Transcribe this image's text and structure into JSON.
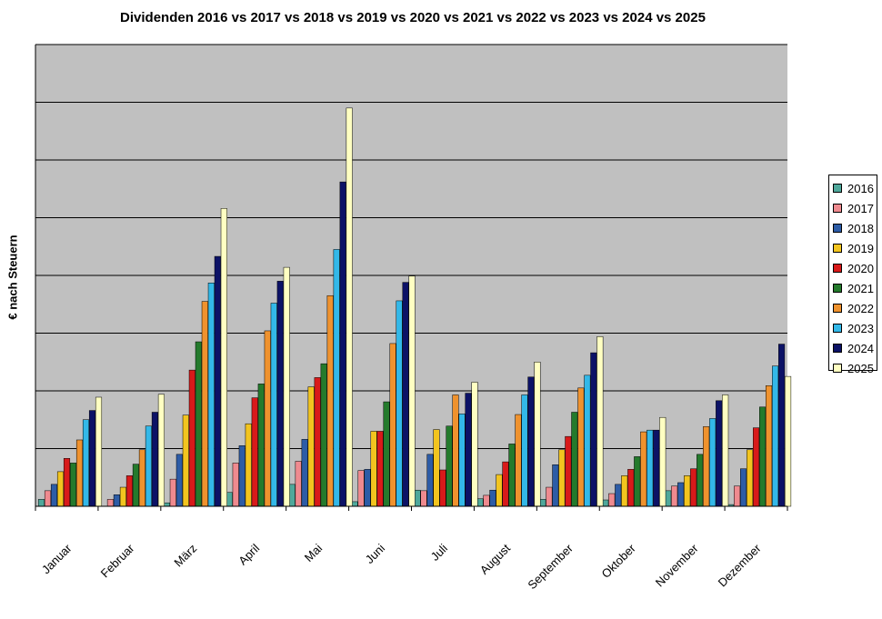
{
  "chart_data": {
    "type": "bar",
    "title": "Dividenden 2016 vs 2017 vs 2018 vs 2019 vs 2020 vs 2021 vs 2022 vs 2023 vs 2024 vs 2025",
    "ylabel": "€ nach Steuern",
    "xlabel": "",
    "ylim": [
      0,
      8
    ],
    "y_ticks_labeled": false,
    "grid": true,
    "legend_position": "right",
    "plot_background": "#c0c0c0",
    "categories": [
      "Januar",
      "Februar",
      "März",
      "April",
      "Mai",
      "Juni",
      "Juli",
      "August",
      "September",
      "Oktober",
      "November",
      "Dezember"
    ],
    "series": [
      {
        "name": "2016",
        "color": "#4fa89b",
        "values": [
          0.12,
          0.0,
          0.06,
          0.24,
          0.38,
          0.08,
          0.28,
          0.13,
          0.12,
          0.11,
          0.27,
          0.03
        ]
      },
      {
        "name": "2017",
        "color": "#ef8a8f",
        "values": [
          0.27,
          0.12,
          0.47,
          0.75,
          0.78,
          0.62,
          0.27,
          0.19,
          0.33,
          0.22,
          0.35,
          0.35
        ]
      },
      {
        "name": "2018",
        "color": "#2d5ca6",
        "values": [
          0.38,
          0.2,
          0.9,
          1.05,
          1.16,
          0.64,
          0.9,
          0.28,
          0.72,
          0.38,
          0.41,
          0.65
        ]
      },
      {
        "name": "2019",
        "color": "#f2c41f",
        "values": [
          0.6,
          0.33,
          1.58,
          1.43,
          2.07,
          1.3,
          1.33,
          0.55,
          0.98,
          0.53,
          0.53,
          0.98
        ]
      },
      {
        "name": "2020",
        "color": "#d81a1a",
        "values": [
          0.83,
          0.53,
          2.36,
          1.88,
          2.23,
          1.3,
          0.63,
          0.77,
          1.21,
          0.64,
          0.65,
          1.36
        ]
      },
      {
        "name": "2021",
        "color": "#247a2c",
        "values": [
          0.75,
          0.73,
          2.85,
          2.12,
          2.47,
          1.81,
          1.39,
          1.08,
          1.63,
          0.86,
          0.9,
          1.72
        ]
      },
      {
        "name": "2022",
        "color": "#ef922e",
        "values": [
          1.15,
          0.98,
          3.55,
          3.04,
          3.65,
          2.82,
          1.93,
          1.59,
          2.05,
          1.29,
          1.38,
          2.09
        ]
      },
      {
        "name": "2023",
        "color": "#33b8e8",
        "values": [
          1.5,
          1.39,
          3.87,
          3.52,
          4.45,
          3.56,
          1.6,
          1.93,
          2.27,
          1.32,
          1.52,
          2.43
        ]
      },
      {
        "name": "2024",
        "color": "#0c1266",
        "values": [
          1.66,
          1.63,
          4.33,
          3.9,
          5.62,
          3.88,
          1.96,
          2.24,
          2.66,
          1.32,
          1.83,
          2.81
        ]
      },
      {
        "name": "2025",
        "color": "#ffffc2",
        "values": [
          1.89,
          1.94,
          5.16,
          4.14,
          6.9,
          3.99,
          2.15,
          2.5,
          2.94,
          1.54,
          1.93,
          2.25
        ]
      }
    ]
  }
}
